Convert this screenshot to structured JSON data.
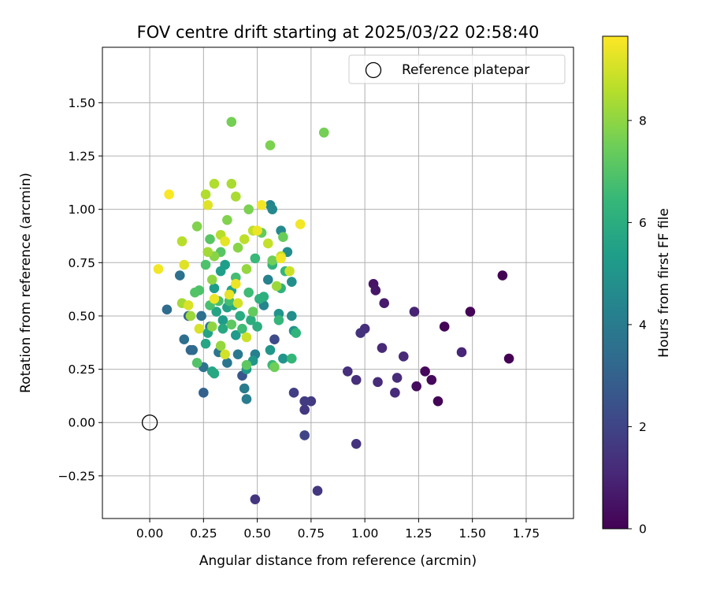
{
  "chart_data": {
    "type": "scatter",
    "title": "FOV centre drift starting at 2025/03/22 02:58:40",
    "xlabel": "Angular distance from reference (arcmin)",
    "ylabel": "Rotation from reference (arcmin)",
    "xlim": [
      -0.22,
      1.97
    ],
    "ylim": [
      -0.45,
      1.76
    ],
    "xticks": [
      0.0,
      0.25,
      0.5,
      0.75,
      1.0,
      1.25,
      1.5,
      1.75
    ],
    "xtick_labels": [
      "0.00",
      "0.25",
      "0.50",
      "0.75",
      "1.00",
      "1.25",
      "1.50",
      "1.75"
    ],
    "yticks": [
      -0.25,
      0.0,
      0.25,
      0.5,
      0.75,
      1.0,
      1.25,
      1.5
    ],
    "ytick_labels": [
      "−0.25",
      "0.00",
      "0.25",
      "0.50",
      "0.75",
      "1.00",
      "1.25",
      "1.50"
    ],
    "grid": true,
    "legend": {
      "position": "top-right",
      "entries": [
        "Reference platepar"
      ]
    },
    "reference_point": {
      "x": 0.0,
      "y": 0.0,
      "label": "Reference platepar"
    },
    "colorbar": {
      "label": "Hours from first FF file",
      "range": [
        0,
        9.65
      ],
      "ticks": [
        0,
        2,
        4,
        6,
        8
      ],
      "tick_labels": [
        "0",
        "2",
        "4",
        "6",
        "8"
      ],
      "colormap": "viridis"
    },
    "colormap_stops": [
      "#440154",
      "#482878",
      "#3e4989",
      "#31688e",
      "#26828e",
      "#1f9e89",
      "#35b779",
      "#6ece58",
      "#b5de2b",
      "#fde725"
    ],
    "points": [
      {
        "x": 1.64,
        "y": 0.69,
        "t": 0.0
      },
      {
        "x": 1.67,
        "y": 0.3,
        "t": 0.0
      },
      {
        "x": 1.49,
        "y": 0.52,
        "t": 0.1
      },
      {
        "x": 1.37,
        "y": 0.45,
        "t": 0.1
      },
      {
        "x": 1.34,
        "y": 0.1,
        "t": 0.1
      },
      {
        "x": 1.31,
        "y": 0.2,
        "t": 0.2
      },
      {
        "x": 1.28,
        "y": 0.24,
        "t": 0.2
      },
      {
        "x": 1.24,
        "y": 0.17,
        "t": 0.3
      },
      {
        "x": 1.04,
        "y": 0.65,
        "t": 0.5
      },
      {
        "x": 1.05,
        "y": 0.62,
        "t": 0.6
      },
      {
        "x": 1.09,
        "y": 0.56,
        "t": 0.7
      },
      {
        "x": 1.23,
        "y": 0.52,
        "t": 0.9
      },
      {
        "x": 1.45,
        "y": 0.33,
        "t": 1.0
      },
      {
        "x": 1.18,
        "y": 0.31,
        "t": 1.1
      },
      {
        "x": 1.08,
        "y": 0.35,
        "t": 1.1
      },
      {
        "x": 1.15,
        "y": 0.21,
        "t": 1.2
      },
      {
        "x": 1.14,
        "y": 0.14,
        "t": 1.2
      },
      {
        "x": 1.06,
        "y": 0.19,
        "t": 1.2
      },
      {
        "x": 0.96,
        "y": 0.2,
        "t": 1.3
      },
      {
        "x": 0.92,
        "y": 0.24,
        "t": 1.3
      },
      {
        "x": 1.0,
        "y": 0.44,
        "t": 1.3
      },
      {
        "x": 0.98,
        "y": 0.42,
        "t": 1.4
      },
      {
        "x": 0.96,
        "y": -0.1,
        "t": 1.4
      },
      {
        "x": 0.49,
        "y": -0.36,
        "t": 1.5
      },
      {
        "x": 0.78,
        "y": -0.32,
        "t": 1.6
      },
      {
        "x": 0.72,
        "y": 0.06,
        "t": 1.6
      },
      {
        "x": 0.72,
        "y": 0.1,
        "t": 1.7
      },
      {
        "x": 0.75,
        "y": 0.1,
        "t": 1.7
      },
      {
        "x": 0.67,
        "y": 0.14,
        "t": 1.8
      },
      {
        "x": 0.72,
        "y": -0.06,
        "t": 2.0
      },
      {
        "x": 0.58,
        "y": 0.39,
        "t": 2.2
      },
      {
        "x": 0.43,
        "y": 0.22,
        "t": 2.6
      },
      {
        "x": 0.25,
        "y": 0.14,
        "t": 3.0
      },
      {
        "x": 0.18,
        "y": 0.5,
        "t": 3.1
      },
      {
        "x": 0.19,
        "y": 0.34,
        "t": 3.2
      },
      {
        "x": 0.2,
        "y": 0.34,
        "t": 3.3
      },
      {
        "x": 0.08,
        "y": 0.53,
        "t": 3.4
      },
      {
        "x": 0.16,
        "y": 0.39,
        "t": 3.5
      },
      {
        "x": 0.14,
        "y": 0.69,
        "t": 3.6
      },
      {
        "x": 0.24,
        "y": 0.5,
        "t": 3.6
      },
      {
        "x": 0.25,
        "y": 0.26,
        "t": 3.7
      },
      {
        "x": 0.28,
        "y": 0.45,
        "t": 3.7
      },
      {
        "x": 0.32,
        "y": 0.33,
        "t": 3.8
      },
      {
        "x": 0.36,
        "y": 0.28,
        "t": 3.8
      },
      {
        "x": 0.41,
        "y": 0.32,
        "t": 3.9
      },
      {
        "x": 0.44,
        "y": 0.16,
        "t": 4.0
      },
      {
        "x": 0.45,
        "y": 0.11,
        "t": 4.1
      },
      {
        "x": 0.49,
        "y": 0.32,
        "t": 4.2
      },
      {
        "x": 0.55,
        "y": 0.67,
        "t": 4.3
      },
      {
        "x": 0.53,
        "y": 0.55,
        "t": 4.4
      },
      {
        "x": 0.56,
        "y": 1.02,
        "t": 4.4
      },
      {
        "x": 0.57,
        "y": 1.0,
        "t": 4.5
      },
      {
        "x": 0.61,
        "y": 0.9,
        "t": 4.6
      },
      {
        "x": 0.64,
        "y": 0.8,
        "t": 4.7
      },
      {
        "x": 0.66,
        "y": 0.66,
        "t": 4.8
      },
      {
        "x": 0.66,
        "y": 0.5,
        "t": 4.8
      },
      {
        "x": 0.67,
        "y": 0.43,
        "t": 4.9
      },
      {
        "x": 0.6,
        "y": 0.51,
        "t": 5.0
      },
      {
        "x": 0.62,
        "y": 0.3,
        "t": 5.0
      },
      {
        "x": 0.56,
        "y": 0.34,
        "t": 5.1
      },
      {
        "x": 0.48,
        "y": 0.29,
        "t": 5.1
      },
      {
        "x": 0.45,
        "y": 0.25,
        "t": 5.2
      },
      {
        "x": 0.4,
        "y": 0.41,
        "t": 5.2
      },
      {
        "x": 0.34,
        "y": 0.48,
        "t": 5.3
      },
      {
        "x": 0.3,
        "y": 0.63,
        "t": 5.3
      },
      {
        "x": 0.33,
        "y": 0.71,
        "t": 5.4
      },
      {
        "x": 0.35,
        "y": 0.74,
        "t": 5.4
      },
      {
        "x": 0.38,
        "y": 0.62,
        "t": 5.5
      },
      {
        "x": 0.36,
        "y": 0.54,
        "t": 5.5
      },
      {
        "x": 0.31,
        "y": 0.52,
        "t": 5.6
      },
      {
        "x": 0.27,
        "y": 0.42,
        "t": 5.6
      },
      {
        "x": 0.26,
        "y": 0.37,
        "t": 5.7
      },
      {
        "x": 0.29,
        "y": 0.24,
        "t": 5.7
      },
      {
        "x": 0.3,
        "y": 0.23,
        "t": 5.8
      },
      {
        "x": 0.34,
        "y": 0.44,
        "t": 5.8
      },
      {
        "x": 0.39,
        "y": 0.55,
        "t": 5.9
      },
      {
        "x": 0.42,
        "y": 0.5,
        "t": 5.9
      },
      {
        "x": 0.47,
        "y": 0.48,
        "t": 6.0
      },
      {
        "x": 0.5,
        "y": 0.45,
        "t": 6.0
      },
      {
        "x": 0.51,
        "y": 0.58,
        "t": 6.1
      },
      {
        "x": 0.53,
        "y": 0.59,
        "t": 6.1
      },
      {
        "x": 0.57,
        "y": 0.74,
        "t": 6.2
      },
      {
        "x": 0.61,
        "y": 0.63,
        "t": 6.2
      },
      {
        "x": 0.63,
        "y": 0.71,
        "t": 6.3
      },
      {
        "x": 0.68,
        "y": 0.42,
        "t": 6.3
      },
      {
        "x": 0.66,
        "y": 0.3,
        "t": 6.4
      },
      {
        "x": 0.6,
        "y": 0.48,
        "t": 6.4
      },
      {
        "x": 0.57,
        "y": 0.27,
        "t": 6.5
      },
      {
        "x": 0.49,
        "y": 0.77,
        "t": 6.5
      },
      {
        "x": 0.46,
        "y": 0.61,
        "t": 6.6
      },
      {
        "x": 0.43,
        "y": 0.44,
        "t": 6.6
      },
      {
        "x": 0.4,
        "y": 0.68,
        "t": 6.7
      },
      {
        "x": 0.37,
        "y": 0.57,
        "t": 6.7
      },
      {
        "x": 0.32,
        "y": 0.57,
        "t": 6.8
      },
      {
        "x": 0.28,
        "y": 0.55,
        "t": 6.8
      },
      {
        "x": 0.26,
        "y": 0.74,
        "t": 6.9
      },
      {
        "x": 0.23,
        "y": 0.62,
        "t": 6.9
      },
      {
        "x": 0.21,
        "y": 0.61,
        "t": 7.0
      },
      {
        "x": 0.22,
        "y": 0.28,
        "t": 7.0
      },
      {
        "x": 0.28,
        "y": 0.86,
        "t": 7.1
      },
      {
        "x": 0.33,
        "y": 0.8,
        "t": 7.1
      },
      {
        "x": 0.38,
        "y": 0.46,
        "t": 7.2
      },
      {
        "x": 0.45,
        "y": 0.27,
        "t": 7.2
      },
      {
        "x": 0.48,
        "y": 0.52,
        "t": 7.3
      },
      {
        "x": 0.52,
        "y": 0.89,
        "t": 7.3
      },
      {
        "x": 0.62,
        "y": 0.87,
        "t": 7.4
      },
      {
        "x": 0.57,
        "y": 0.76,
        "t": 7.5
      },
      {
        "x": 0.58,
        "y": 0.26,
        "t": 7.5
      },
      {
        "x": 0.38,
        "y": 1.41,
        "t": 7.6
      },
      {
        "x": 0.81,
        "y": 1.36,
        "t": 7.6
      },
      {
        "x": 0.56,
        "y": 1.3,
        "t": 7.7
      },
      {
        "x": 0.46,
        "y": 1.0,
        "t": 7.7
      },
      {
        "x": 0.22,
        "y": 0.92,
        "t": 7.8
      },
      {
        "x": 0.36,
        "y": 0.95,
        "t": 7.8
      },
      {
        "x": 0.41,
        "y": 0.82,
        "t": 7.9
      },
      {
        "x": 0.3,
        "y": 0.78,
        "t": 7.9
      },
      {
        "x": 0.29,
        "y": 0.67,
        "t": 8.0
      },
      {
        "x": 0.29,
        "y": 0.45,
        "t": 8.0
      },
      {
        "x": 0.33,
        "y": 0.36,
        "t": 8.1
      },
      {
        "x": 0.45,
        "y": 0.72,
        "t": 8.1
      },
      {
        "x": 0.59,
        "y": 0.64,
        "t": 8.2
      },
      {
        "x": 0.19,
        "y": 0.5,
        "t": 8.2
      },
      {
        "x": 0.15,
        "y": 0.56,
        "t": 8.3
      },
      {
        "x": 0.27,
        "y": 0.8,
        "t": 8.3
      },
      {
        "x": 0.4,
        "y": 1.06,
        "t": 8.4
      },
      {
        "x": 0.38,
        "y": 1.12,
        "t": 8.4
      },
      {
        "x": 0.3,
        "y": 1.12,
        "t": 8.5
      },
      {
        "x": 0.26,
        "y": 1.07,
        "t": 8.5
      },
      {
        "x": 0.15,
        "y": 0.85,
        "t": 8.6
      },
      {
        "x": 0.33,
        "y": 0.88,
        "t": 8.6
      },
      {
        "x": 0.44,
        "y": 0.86,
        "t": 8.7
      },
      {
        "x": 0.48,
        "y": 0.9,
        "t": 8.7
      },
      {
        "x": 0.55,
        "y": 0.84,
        "t": 8.8
      },
      {
        "x": 0.61,
        "y": 0.78,
        "t": 8.8
      },
      {
        "x": 0.65,
        "y": 0.71,
        "t": 8.9
      },
      {
        "x": 0.45,
        "y": 0.4,
        "t": 8.9
      },
      {
        "x": 0.41,
        "y": 0.56,
        "t": 9.0
      },
      {
        "x": 0.35,
        "y": 0.32,
        "t": 9.0
      },
      {
        "x": 0.23,
        "y": 0.44,
        "t": 9.1
      },
      {
        "x": 0.18,
        "y": 0.55,
        "t": 9.1
      },
      {
        "x": 0.16,
        "y": 0.74,
        "t": 9.2
      },
      {
        "x": 0.27,
        "y": 1.02,
        "t": 9.2
      },
      {
        "x": 0.35,
        "y": 0.85,
        "t": 9.3
      },
      {
        "x": 0.37,
        "y": 0.6,
        "t": 9.3
      },
      {
        "x": 0.3,
        "y": 0.58,
        "t": 9.4
      },
      {
        "x": 0.4,
        "y": 0.65,
        "t": 9.4
      },
      {
        "x": 0.5,
        "y": 0.9,
        "t": 9.4
      },
      {
        "x": 0.52,
        "y": 1.02,
        "t": 9.5
      },
      {
        "x": 0.61,
        "y": 0.77,
        "t": 9.5
      },
      {
        "x": 0.7,
        "y": 0.93,
        "t": 9.5
      },
      {
        "x": 0.04,
        "y": 0.72,
        "t": 9.5
      },
      {
        "x": 0.09,
        "y": 1.07,
        "t": 9.6
      }
    ]
  }
}
